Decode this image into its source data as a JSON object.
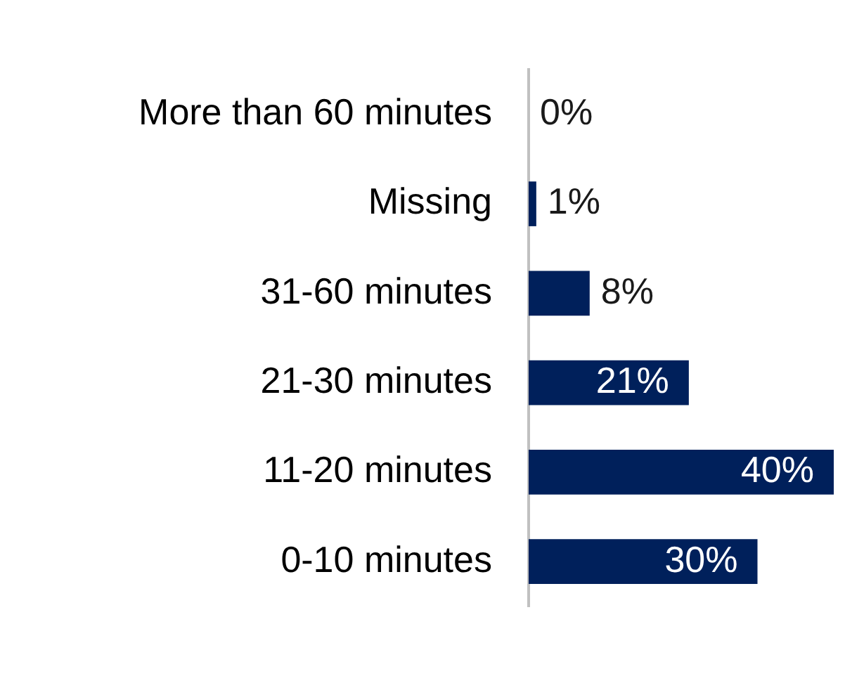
{
  "chart_data": {
    "type": "bar",
    "orientation": "horizontal",
    "categories": [
      "More than 60 minutes",
      "Missing",
      "31-60 minutes",
      "21-30 minutes",
      "11-20 minutes",
      "0-10 minutes"
    ],
    "values": [
      0,
      1,
      8,
      21,
      40,
      30
    ],
    "value_labels": [
      "0%",
      "1%",
      "8%",
      "21%",
      "40%",
      "30%"
    ],
    "color": "#00205b",
    "tick_labels": "y"
  }
}
